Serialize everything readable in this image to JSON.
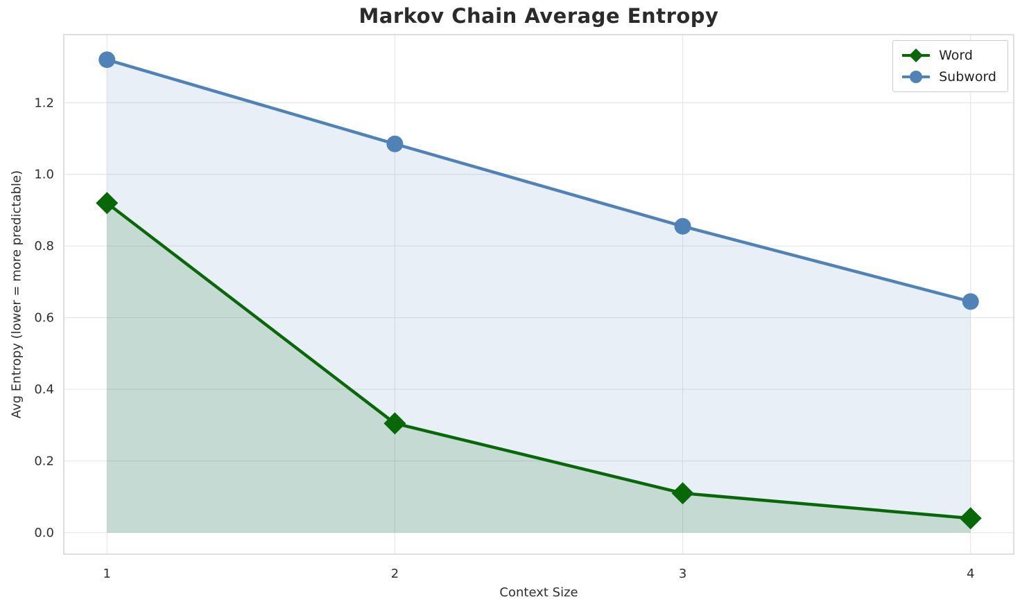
{
  "chart_data": {
    "type": "line",
    "title": "Markov Chain Average Entropy",
    "xlabel": "Context Size",
    "ylabel": "Avg Entropy (lower = more predictable)",
    "x": [
      1,
      2,
      3,
      4
    ],
    "series": [
      {
        "name": "Word",
        "values": [
          0.92,
          0.305,
          0.11,
          0.04
        ],
        "color": "#086808",
        "marker": "diamond",
        "fill_opacity": 0.16
      },
      {
        "name": "Subword",
        "values": [
          1.32,
          1.085,
          0.855,
          0.645
        ],
        "color": "#4f83b8",
        "marker": "circle",
        "fill_opacity": 0.13
      }
    ],
    "xticks": [
      1,
      2,
      3,
      4
    ],
    "xtick_labels": [
      "1",
      "2",
      "3",
      "4"
    ],
    "yticks": [
      0,
      0.2,
      0.4,
      0.6,
      0.8,
      1.0,
      1.2
    ],
    "ytick_labels": [
      "0.0",
      "0.2",
      "0.4",
      "0.6",
      "0.8",
      "1.0",
      "1.2"
    ],
    "xlim": [
      0.85,
      4.15
    ],
    "ylim": [
      -0.06,
      1.39
    ],
    "grid": true,
    "legend": {
      "position": "top-right",
      "entries": [
        "Word",
        "Subword"
      ]
    }
  }
}
